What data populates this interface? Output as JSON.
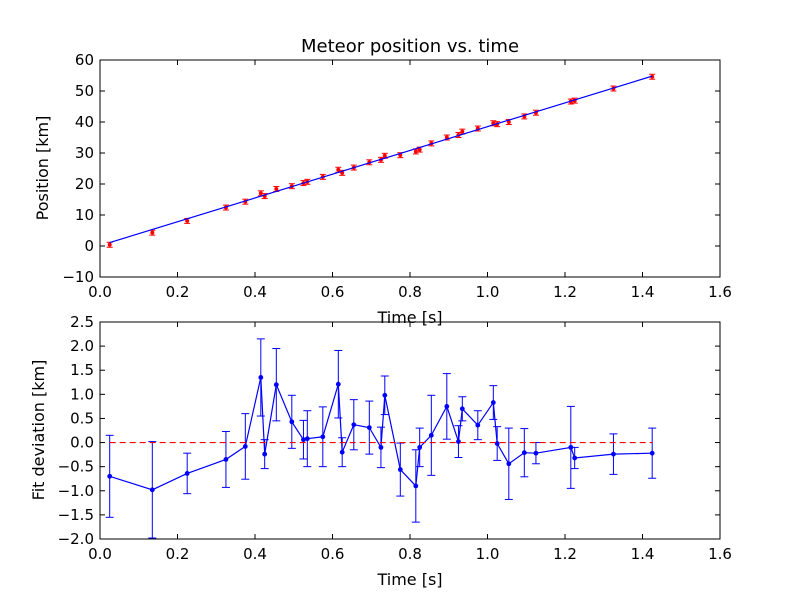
{
  "colors": {
    "fit_line": "#0000ff",
    "observed_points": "#ff0000",
    "residuals": "#0000ff",
    "zero_line": "#ff0000"
  },
  "chart_data": [
    {
      "type": "scatter",
      "title": "Meteor position vs. time",
      "xlabel": "Time [s]",
      "ylabel": "Position [km]",
      "xlim": [
        0.0,
        1.6
      ],
      "ylim": [
        -10,
        60
      ],
      "xticks": [
        "0.0",
        "0.2",
        "0.4",
        "0.6",
        "0.8",
        "1.0",
        "1.2",
        "1.4",
        "1.6"
      ],
      "yticks": [
        "−10",
        "0",
        "10",
        "20",
        "30",
        "40",
        "50",
        "60"
      ],
      "grid": false,
      "series": [
        {
          "kind": "errorbar-points",
          "x": [
            0.025,
            0.135,
            0.225,
            0.325,
            0.375,
            0.415,
            0.425,
            0.455,
            0.495,
            0.525,
            0.535,
            0.575,
            0.615,
            0.625,
            0.655,
            0.695,
            0.725,
            0.735,
            0.775,
            0.815,
            0.825,
            0.855,
            0.895,
            0.925,
            0.935,
            0.975,
            1.015,
            1.025,
            1.055,
            1.095,
            1.125,
            1.215,
            1.225,
            1.325,
            1.425
          ],
          "y": [
            0.4,
            4.3,
            8.1,
            12.4,
            14.3,
            17.0,
            16.1,
            18.4,
            19.3,
            20.3,
            20.7,
            22.3,
            24.6,
            23.6,
            25.3,
            27.0,
            27.8,
            29.1,
            29.3,
            30.5,
            31.1,
            33.1,
            35.0,
            35.8,
            36.9,
            37.9,
            39.6,
            39.3,
            40.0,
            41.8,
            43.0,
            46.6,
            46.9,
            50.8,
            54.6
          ],
          "yerr": 0.8
        },
        {
          "kind": "fit-line",
          "x": [
            0.025,
            1.425
          ],
          "y": [
            1.1,
            54.8
          ]
        }
      ]
    },
    {
      "type": "line",
      "title": "",
      "xlabel": "Time [s]",
      "ylabel": "Fit deviation [km]",
      "xlim": [
        0.0,
        1.6
      ],
      "ylim": [
        -2.0,
        2.5
      ],
      "xticks": [
        "0.0",
        "0.2",
        "0.4",
        "0.6",
        "0.8",
        "1.0",
        "1.2",
        "1.4",
        "1.6"
      ],
      "yticks": [
        "−2.0",
        "−1.5",
        "−1.0",
        "−0.5",
        "0.0",
        "0.5",
        "1.0",
        "1.5",
        "2.0",
        "2.5"
      ],
      "grid": false,
      "series": [
        {
          "kind": "errorbar-line",
          "x": [
            0.025,
            0.135,
            0.225,
            0.325,
            0.375,
            0.415,
            0.425,
            0.455,
            0.495,
            0.525,
            0.535,
            0.575,
            0.615,
            0.625,
            0.655,
            0.695,
            0.725,
            0.735,
            0.775,
            0.815,
            0.825,
            0.855,
            0.895,
            0.925,
            0.935,
            0.975,
            1.015,
            1.025,
            1.055,
            1.095,
            1.125,
            1.215,
            1.225,
            1.325,
            1.425
          ],
          "y": [
            -0.7,
            -0.98,
            -0.64,
            -0.35,
            -0.08,
            1.35,
            -0.24,
            1.2,
            0.43,
            0.06,
            0.08,
            0.12,
            1.21,
            -0.2,
            0.37,
            0.31,
            -0.1,
            0.98,
            -0.56,
            -0.9,
            -0.1,
            0.15,
            0.75,
            0.02,
            0.7,
            0.36,
            0.83,
            -0.02,
            -0.44,
            -0.21,
            -0.22,
            -0.1,
            -0.32,
            -0.24,
            -0.22
          ],
          "yerr": [
            0.85,
            1.0,
            0.42,
            0.58,
            0.68,
            0.8,
            0.3,
            0.75,
            0.55,
            0.4,
            0.58,
            0.62,
            0.7,
            0.3,
            0.52,
            0.55,
            0.42,
            0.4,
            0.55,
            0.75,
            0.4,
            0.83,
            0.68,
            0.33,
            0.25,
            0.3,
            0.35,
            0.35,
            0.74,
            0.5,
            0.22,
            0.85,
            0.22,
            0.42,
            0.52
          ]
        },
        {
          "kind": "reference-line",
          "style": "dashed",
          "x": [
            0.025,
            1.425
          ],
          "y": [
            0.0,
            0.0
          ]
        }
      ]
    }
  ]
}
